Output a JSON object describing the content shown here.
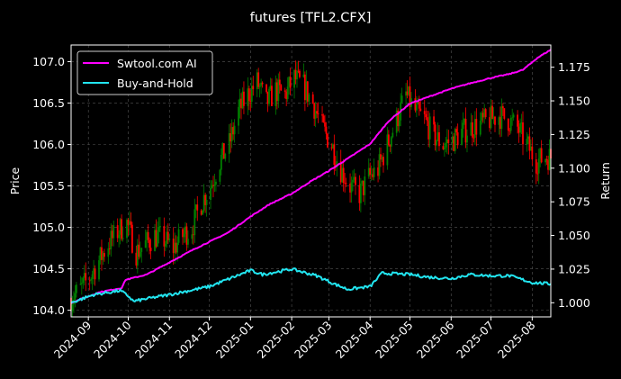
{
  "chart_data": {
    "type": "line",
    "title": "futures [TFL2.CFX]",
    "ylabel_left": "Price",
    "ylabel_right": "Return",
    "xlim": [
      "2024-08-19",
      "2025-08-15"
    ],
    "ylim_left": [
      103.92,
      107.2
    ],
    "ylim_right": [
      0.9895,
      1.1915
    ],
    "x_ticks": [
      "2024-09-01",
      "2024-10-01",
      "2024-11-01",
      "2024-12-01",
      "2025-01-01",
      "2025-02-01",
      "2025-03-01",
      "2025-04-01",
      "2025-05-01",
      "2025-06-01",
      "2025-07-01",
      "2025-08-01"
    ],
    "x_tick_labels": [
      "2024-09",
      "2024-10",
      "2024-11",
      "2024-12",
      "2025-01",
      "2025-02",
      "2025-03",
      "2025-04",
      "2025-05",
      "2025-06",
      "2025-07",
      "2025-08"
    ],
    "y_ticks_left": [
      "104.0",
      "104.5",
      "105.0",
      "105.5",
      "106.0",
      "106.5",
      "107.0"
    ],
    "y_ticks_right": [
      "1.000",
      "1.025",
      "1.050",
      "1.075",
      "1.100",
      "1.125",
      "1.150",
      "1.175"
    ],
    "grid": true,
    "legend_position": "upper-left",
    "candles": {
      "up_color": "#008000",
      "down_color": "#ff0000",
      "anchor_dates": [
        "2024-08-19",
        "2024-08-26",
        "2024-09-02",
        "2024-09-09",
        "2024-09-16",
        "2024-09-23",
        "2024-09-30",
        "2024-10-07",
        "2024-10-14",
        "2024-10-21",
        "2024-10-28",
        "2024-11-04",
        "2024-11-11",
        "2024-11-18",
        "2024-11-25",
        "2024-12-02",
        "2024-12-09",
        "2024-12-16",
        "2024-12-23",
        "2024-12-30",
        "2025-01-06",
        "2025-01-13",
        "2025-01-20",
        "2025-01-27",
        "2025-02-03",
        "2025-02-10",
        "2025-02-17",
        "2025-02-24",
        "2025-03-03",
        "2025-03-10",
        "2025-03-17",
        "2025-03-24",
        "2025-03-31",
        "2025-04-07",
        "2025-04-14",
        "2025-04-21",
        "2025-04-28",
        "2025-05-05",
        "2025-05-12",
        "2025-05-19",
        "2025-05-26",
        "2025-06-02",
        "2025-06-09",
        "2025-06-16",
        "2025-06-23",
        "2025-06-30",
        "2025-07-07",
        "2025-07-14",
        "2025-07-21",
        "2025-07-28",
        "2025-08-04",
        "2025-08-11"
      ],
      "anchor_close": [
        104.15,
        104.25,
        104.4,
        104.6,
        104.8,
        104.95,
        105.05,
        104.7,
        104.8,
        104.9,
        104.85,
        104.75,
        104.9,
        105.0,
        105.3,
        105.5,
        105.8,
        106.0,
        106.4,
        106.6,
        106.75,
        106.5,
        106.65,
        106.6,
        106.8,
        106.7,
        106.5,
        106.2,
        106.0,
        105.7,
        105.5,
        105.4,
        105.6,
        105.7,
        106.0,
        106.3,
        106.6,
        106.4,
        106.3,
        106.1,
        106.0,
        106.05,
        106.15,
        106.2,
        106.25,
        106.3,
        106.35,
        106.3,
        106.2,
        106.0,
        105.8,
        105.85
      ]
    },
    "series": [
      {
        "name": "Swtool.com AI",
        "axis": "right",
        "color": "#ff00ff",
        "x": [
          "2024-08-19",
          "2024-09-10",
          "2024-09-26",
          "2024-09-29",
          "2024-10-15",
          "2024-11-01",
          "2024-11-20",
          "2024-12-15",
          "2025-01-01",
          "2025-01-15",
          "2025-02-01",
          "2025-02-15",
          "2025-03-01",
          "2025-03-15",
          "2025-04-01",
          "2025-04-15",
          "2025-05-01",
          "2025-05-15",
          "2025-06-01",
          "2025-06-15",
          "2025-07-01",
          "2025-07-15",
          "2025-07-25",
          "2025-08-05",
          "2025-08-15"
        ],
        "values": [
          1.0,
          1.008,
          1.011,
          1.017,
          1.021,
          1.03,
          1.04,
          1.052,
          1.064,
          1.073,
          1.081,
          1.09,
          1.098,
          1.107,
          1.118,
          1.135,
          1.148,
          1.153,
          1.159,
          1.163,
          1.167,
          1.17,
          1.173,
          1.182,
          1.188
        ]
      },
      {
        "name": "Buy-and-Hold",
        "axis": "right",
        "color": "#22e5f0",
        "x": [
          "2024-08-19",
          "2024-09-05",
          "2024-09-25",
          "2024-10-01",
          "2024-10-05",
          "2024-10-15",
          "2024-11-01",
          "2024-12-01",
          "2025-01-01",
          "2025-01-10",
          "2025-02-01",
          "2025-02-20",
          "2025-03-05",
          "2025-03-15",
          "2025-04-01",
          "2025-04-10",
          "2025-05-01",
          "2025-05-15",
          "2025-06-01",
          "2025-06-15",
          "2025-07-01",
          "2025-07-15",
          "2025-08-01",
          "2025-08-15"
        ],
        "values": [
          1.0,
          1.006,
          1.009,
          1.005,
          1.001,
          1.003,
          1.006,
          1.012,
          1.024,
          1.021,
          1.025,
          1.02,
          1.014,
          1.01,
          1.012,
          1.022,
          1.021,
          1.019,
          1.018,
          1.021,
          1.02,
          1.02,
          1.015,
          1.014
        ]
      }
    ]
  }
}
